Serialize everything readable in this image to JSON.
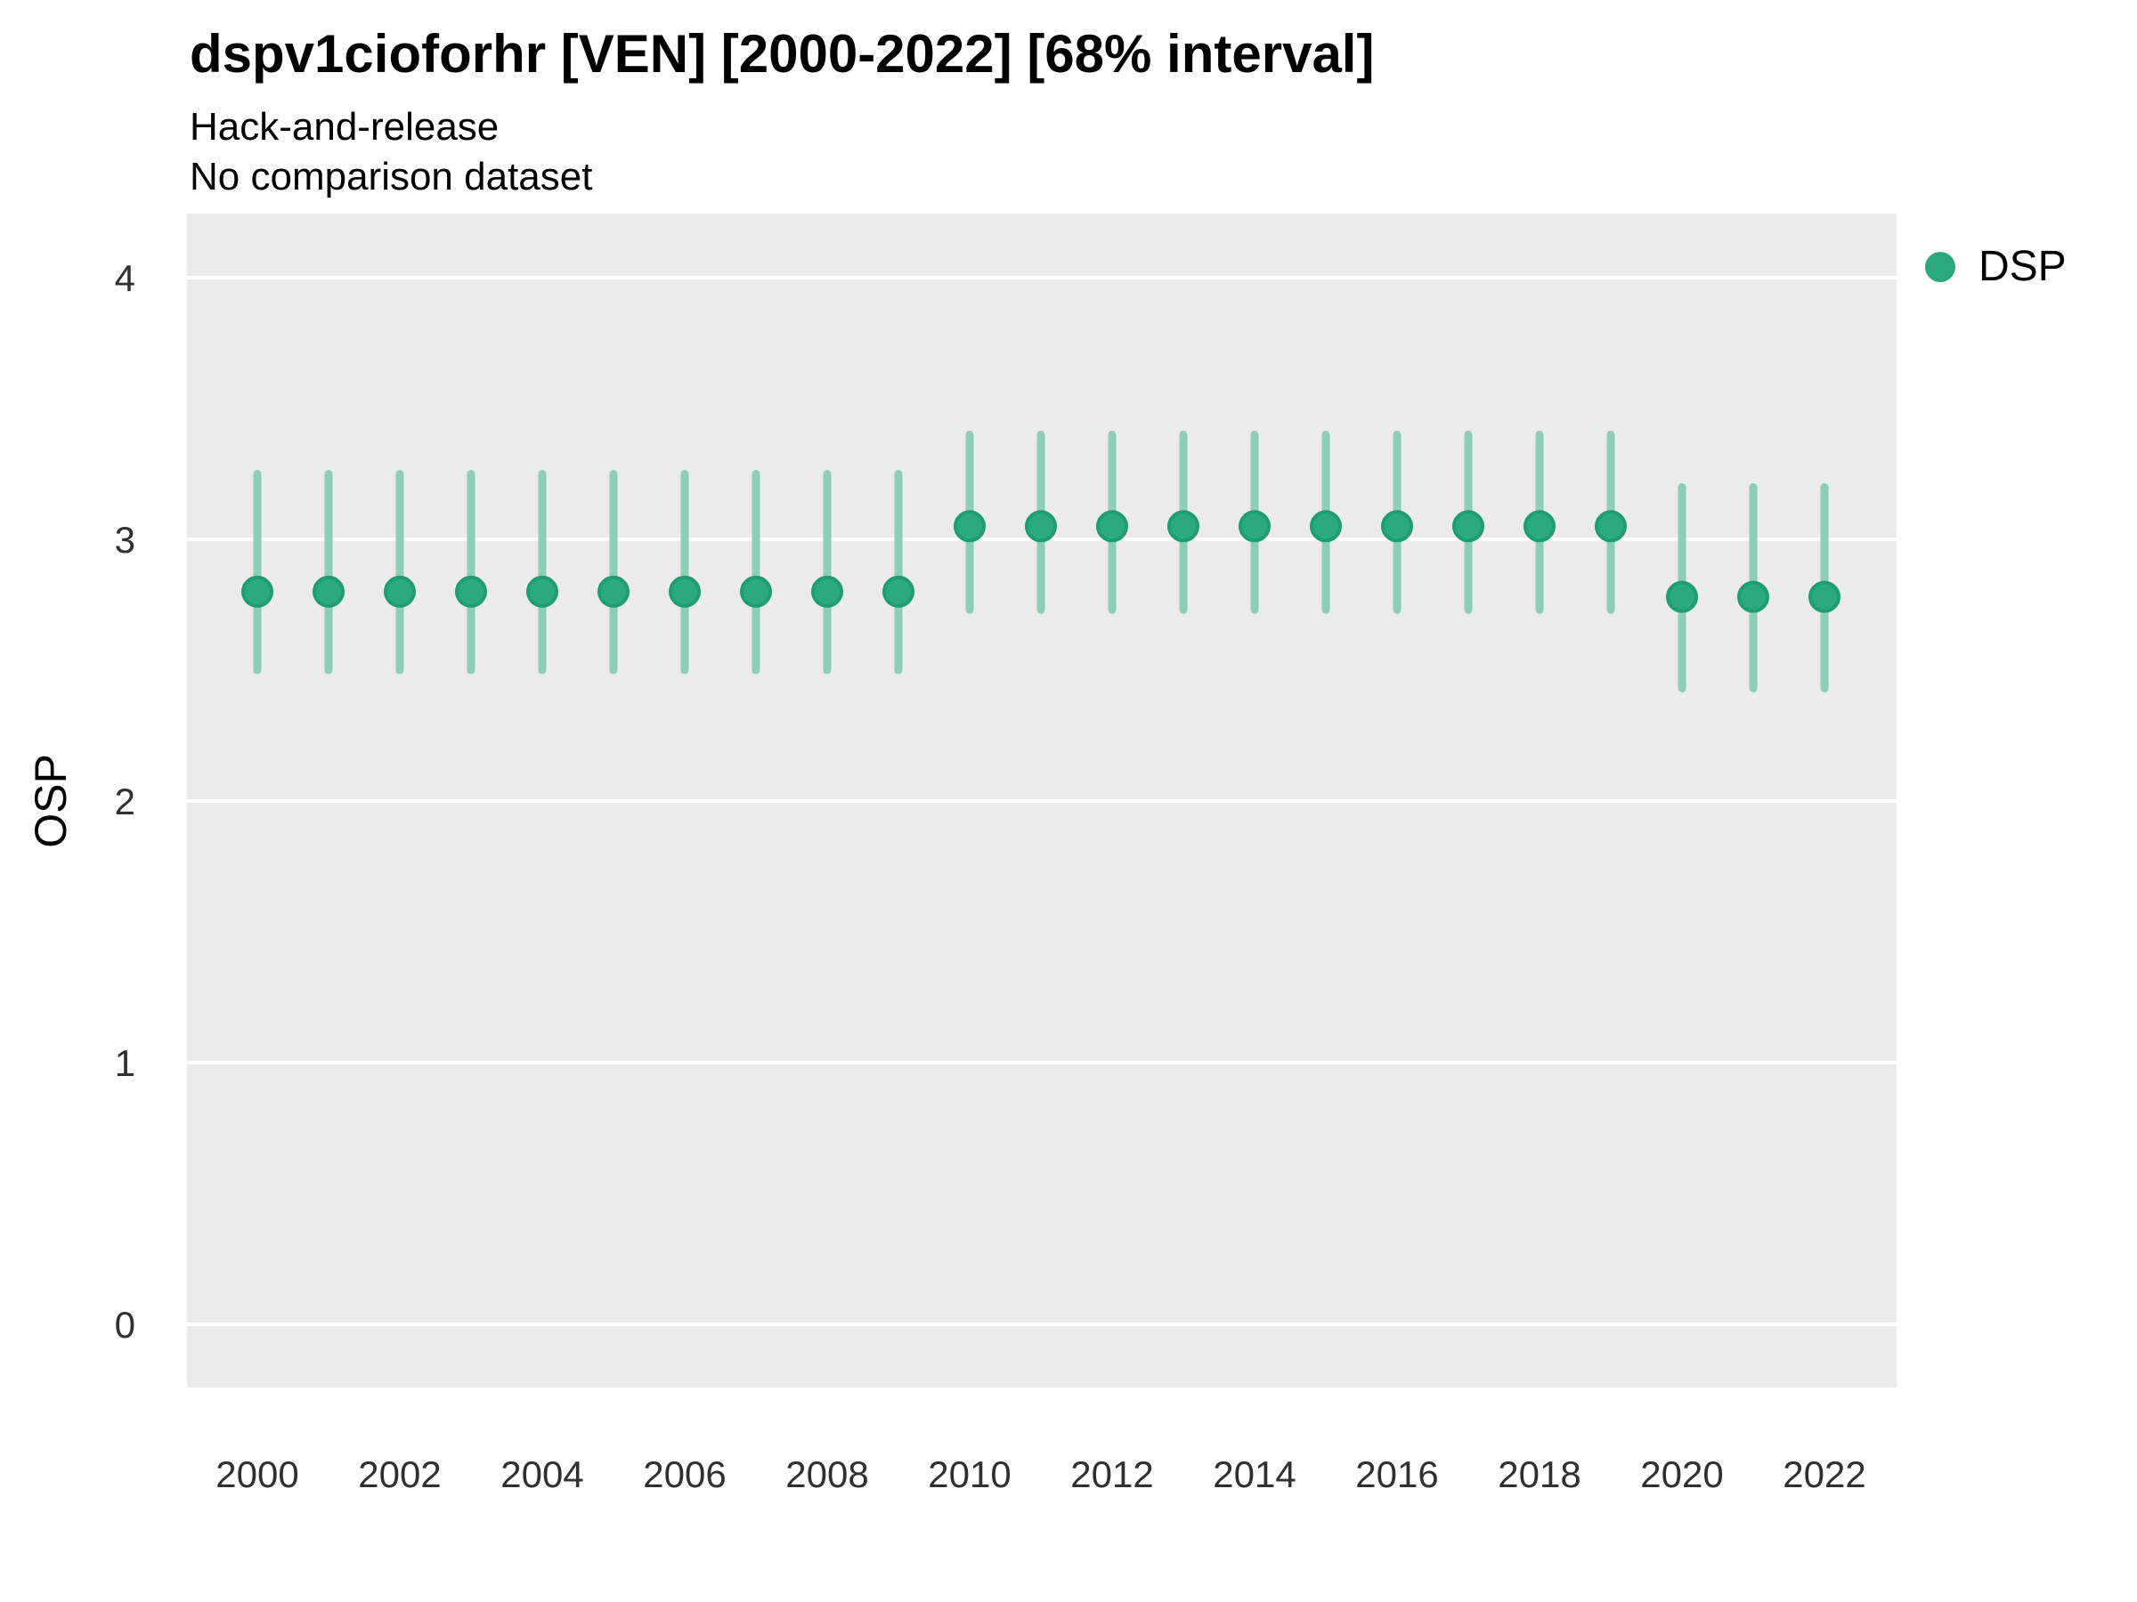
{
  "header": {
    "title": "dspv1cioforhr [VEN] [2000-2022] [68% interval]",
    "subtitle1": "Hack-and-release",
    "subtitle2": "No comparison dataset"
  },
  "legend": {
    "items": [
      {
        "label": "DSP",
        "color": "#2AA87E"
      }
    ]
  },
  "axes": {
    "y_label": "OSP",
    "y_ticks": [
      "0",
      "1",
      "2",
      "3",
      "4"
    ],
    "x_ticks": [
      "2000",
      "2002",
      "2004",
      "2006",
      "2008",
      "2010",
      "2012",
      "2014",
      "2016",
      "2018",
      "2020",
      "2022"
    ]
  },
  "chart_data": {
    "type": "scatter",
    "title": "dspv1cioforhr [VEN] [2000-2022] [68% interval]",
    "subtitle_lines": [
      "Hack-and-release",
      "No comparison dataset"
    ],
    "xlabel": "",
    "ylabel": "OSP",
    "xlim": [
      1999,
      2023
    ],
    "ylim": [
      -0.24,
      4.24
    ],
    "y_tick_values": [
      0,
      1,
      2,
      3,
      4
    ],
    "x_tick_values": [
      2000,
      2002,
      2004,
      2006,
      2008,
      2010,
      2012,
      2014,
      2016,
      2018,
      2020,
      2022
    ],
    "grid": "horizontal-major-only",
    "panel_color": "#EBEBEB",
    "gridline_color": "#FFFFFF",
    "legend_position": "right-top",
    "interval_level": "68%",
    "series": [
      {
        "name": "DSP",
        "point_color": "#2AA87E",
        "point_edge_color": "#1E9C72",
        "interval_color": "#8ECFB2",
        "x": [
          2000,
          2001,
          2002,
          2003,
          2004,
          2005,
          2006,
          2007,
          2008,
          2009,
          2010,
          2011,
          2012,
          2013,
          2014,
          2015,
          2016,
          2017,
          2018,
          2019,
          2020,
          2021,
          2022
        ],
        "mid": [
          2.8,
          2.8,
          2.8,
          2.8,
          2.8,
          2.8,
          2.8,
          2.8,
          2.8,
          2.8,
          3.05,
          3.05,
          3.05,
          3.05,
          3.05,
          3.05,
          3.05,
          3.05,
          3.05,
          3.05,
          2.78,
          2.78,
          2.78
        ],
        "lo": [
          2.5,
          2.5,
          2.5,
          2.5,
          2.5,
          2.5,
          2.5,
          2.5,
          2.5,
          2.5,
          2.73,
          2.73,
          2.73,
          2.73,
          2.73,
          2.73,
          2.73,
          2.73,
          2.73,
          2.73,
          2.43,
          2.43,
          2.43
        ],
        "hi": [
          3.25,
          3.25,
          3.25,
          3.25,
          3.25,
          3.25,
          3.25,
          3.25,
          3.25,
          3.25,
          3.4,
          3.4,
          3.4,
          3.4,
          3.4,
          3.4,
          3.4,
          3.4,
          3.4,
          3.4,
          3.2,
          3.2,
          3.2
        ]
      }
    ]
  }
}
